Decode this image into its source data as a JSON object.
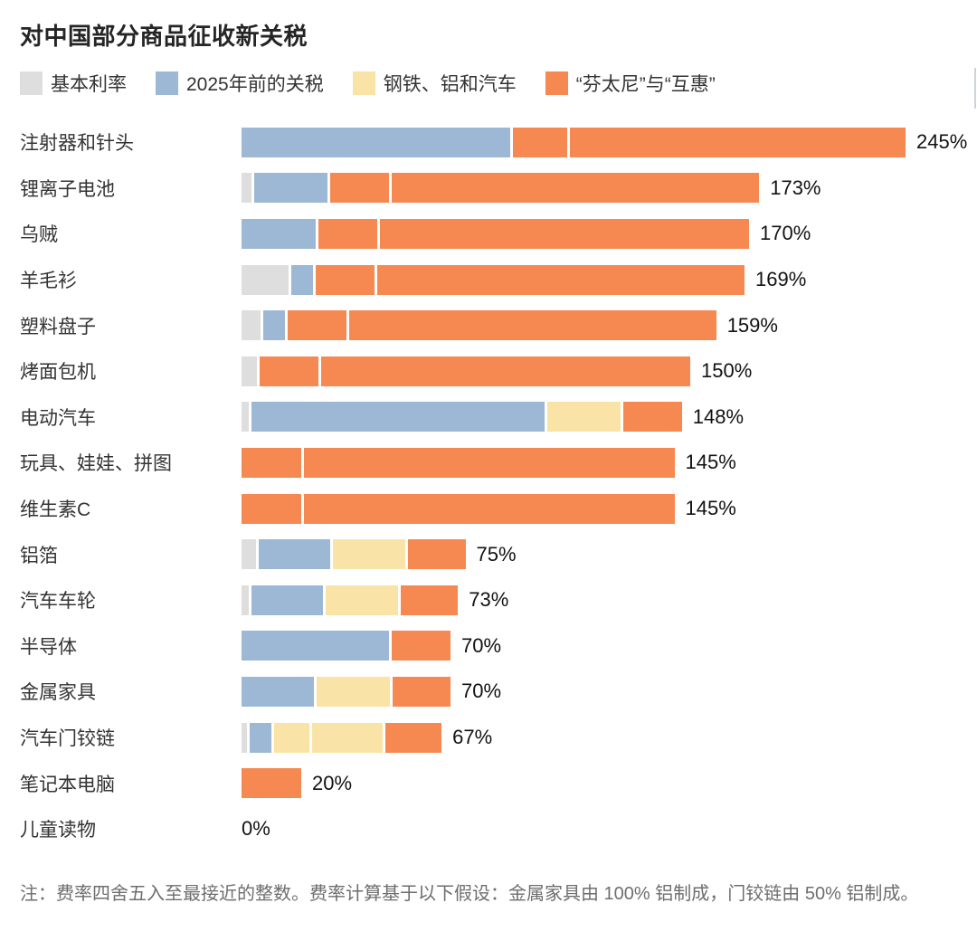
{
  "title": "对中国部分商品征收新关税",
  "note": "注：费率四舍五入至最接近的整数。费率计算基于以下假设：金属家具由 100% 铝制成，门铰链由 50% 铝制成。",
  "colors": {
    "base": "#DEDEDE",
    "pre2025": "#9CB8D4",
    "steel_alum_autos": "#FAE3A6",
    "fentanyl": "#F68852",
    "reciprocal": "#F68852"
  },
  "legend": [
    {
      "key": "base",
      "label": "基本利率"
    },
    {
      "key": "pre2025",
      "label": "2025年前的关税"
    },
    {
      "key": "steel_alum_autos",
      "label": "钢铁、铝和汽车"
    },
    {
      "key": "fentanyl",
      "label": "“芬太尼”与“互惠”"
    }
  ],
  "chart_data": {
    "type": "bar",
    "orientation": "horizontal",
    "stacked": true,
    "value_unit": "%",
    "x_range": [
      0,
      245
    ],
    "series_legend": [
      "基本利率",
      "2025年前的关税",
      "钢铁、铝和汽车",
      "“芬太尼”与“互惠”"
    ],
    "rows": [
      {
        "label": "注射器和针头",
        "total": 245,
        "value_label": "245%",
        "segments": [
          {
            "key": "pre2025",
            "value": 100
          },
          {
            "key": "fentanyl",
            "value": 20
          },
          {
            "key": "reciprocal",
            "value": 125
          }
        ]
      },
      {
        "label": "锂离子电池",
        "total": 173,
        "value_label": "173%",
        "segments": [
          {
            "key": "base",
            "value": 3.4
          },
          {
            "key": "pre2025",
            "value": 25
          },
          {
            "key": "fentanyl",
            "value": 20
          },
          {
            "key": "reciprocal",
            "value": 125
          }
        ]
      },
      {
        "label": "乌贼",
        "total": 170,
        "value_label": "170%",
        "segments": [
          {
            "key": "pre2025",
            "value": 25
          },
          {
            "key": "fentanyl",
            "value": 20
          },
          {
            "key": "reciprocal",
            "value": 125
          }
        ]
      },
      {
        "label": "羊毛衫",
        "total": 169,
        "value_label": "169%",
        "segments": [
          {
            "key": "base",
            "value": 16
          },
          {
            "key": "pre2025",
            "value": 7.5
          },
          {
            "key": "fentanyl",
            "value": 20
          },
          {
            "key": "reciprocal",
            "value": 125
          }
        ]
      },
      {
        "label": "塑料盘子",
        "total": 159,
        "value_label": "159%",
        "segments": [
          {
            "key": "base",
            "value": 6.5
          },
          {
            "key": "pre2025",
            "value": 7.5
          },
          {
            "key": "fentanyl",
            "value": 20
          },
          {
            "key": "reciprocal",
            "value": 125
          }
        ]
      },
      {
        "label": "烤面包机",
        "total": 150,
        "value_label": "150%",
        "segments": [
          {
            "key": "base",
            "value": 5.3
          },
          {
            "key": "fentanyl",
            "value": 20
          },
          {
            "key": "reciprocal",
            "value": 125
          }
        ]
      },
      {
        "label": "电动汽车",
        "total": 148,
        "value_label": "148%",
        "segments": [
          {
            "key": "base",
            "value": 2.5
          },
          {
            "key": "pre2025",
            "value": 100
          },
          {
            "key": "steel_alum_autos",
            "value": 25
          },
          {
            "key": "fentanyl",
            "value": 20
          }
        ]
      },
      {
        "label": "玩具、娃娃、拼图",
        "total": 145,
        "value_label": "145%",
        "segments": [
          {
            "key": "fentanyl",
            "value": 20
          },
          {
            "key": "reciprocal",
            "value": 125
          }
        ]
      },
      {
        "label": "维生素C",
        "total": 145,
        "value_label": "145%",
        "segments": [
          {
            "key": "fentanyl",
            "value": 20
          },
          {
            "key": "reciprocal",
            "value": 125
          }
        ]
      },
      {
        "label": "铝箔",
        "total": 75,
        "value_label": "75%",
        "segments": [
          {
            "key": "base",
            "value": 5
          },
          {
            "key": "pre2025",
            "value": 25
          },
          {
            "key": "steel_alum_autos",
            "value": 25
          },
          {
            "key": "fentanyl",
            "value": 20
          }
        ]
      },
      {
        "label": "汽车车轮",
        "total": 73,
        "value_label": "73%",
        "segments": [
          {
            "key": "base",
            "value": 2.5
          },
          {
            "key": "pre2025",
            "value": 25
          },
          {
            "key": "steel_alum_autos",
            "value": 25
          },
          {
            "key": "fentanyl",
            "value": 20
          }
        ]
      },
      {
        "label": "半导体",
        "total": 70,
        "value_label": "70%",
        "segments": [
          {
            "key": "pre2025",
            "value": 50
          },
          {
            "key": "fentanyl",
            "value": 20
          }
        ]
      },
      {
        "label": "金属家具",
        "total": 70,
        "value_label": "70%",
        "segments": [
          {
            "key": "pre2025",
            "value": 25
          },
          {
            "key": "steel_alum_autos",
            "value": 25
          },
          {
            "key": "fentanyl",
            "value": 20
          }
        ]
      },
      {
        "label": "汽车门铰链",
        "total": 67,
        "value_label": "67%",
        "segments": [
          {
            "key": "base",
            "value": 2
          },
          {
            "key": "pre2025",
            "value": 7.5
          },
          {
            "key": "steel_alum_autos",
            "value": 12.5
          },
          {
            "key": "steel_alum_autos",
            "value": 25
          },
          {
            "key": "fentanyl",
            "value": 20
          }
        ]
      },
      {
        "label": "笔记本电脑",
        "total": 20,
        "value_label": "20%",
        "segments": [
          {
            "key": "fentanyl",
            "value": 20
          }
        ]
      },
      {
        "label": "儿童读物",
        "total": 0,
        "value_label": "0%",
        "segments": []
      }
    ]
  }
}
